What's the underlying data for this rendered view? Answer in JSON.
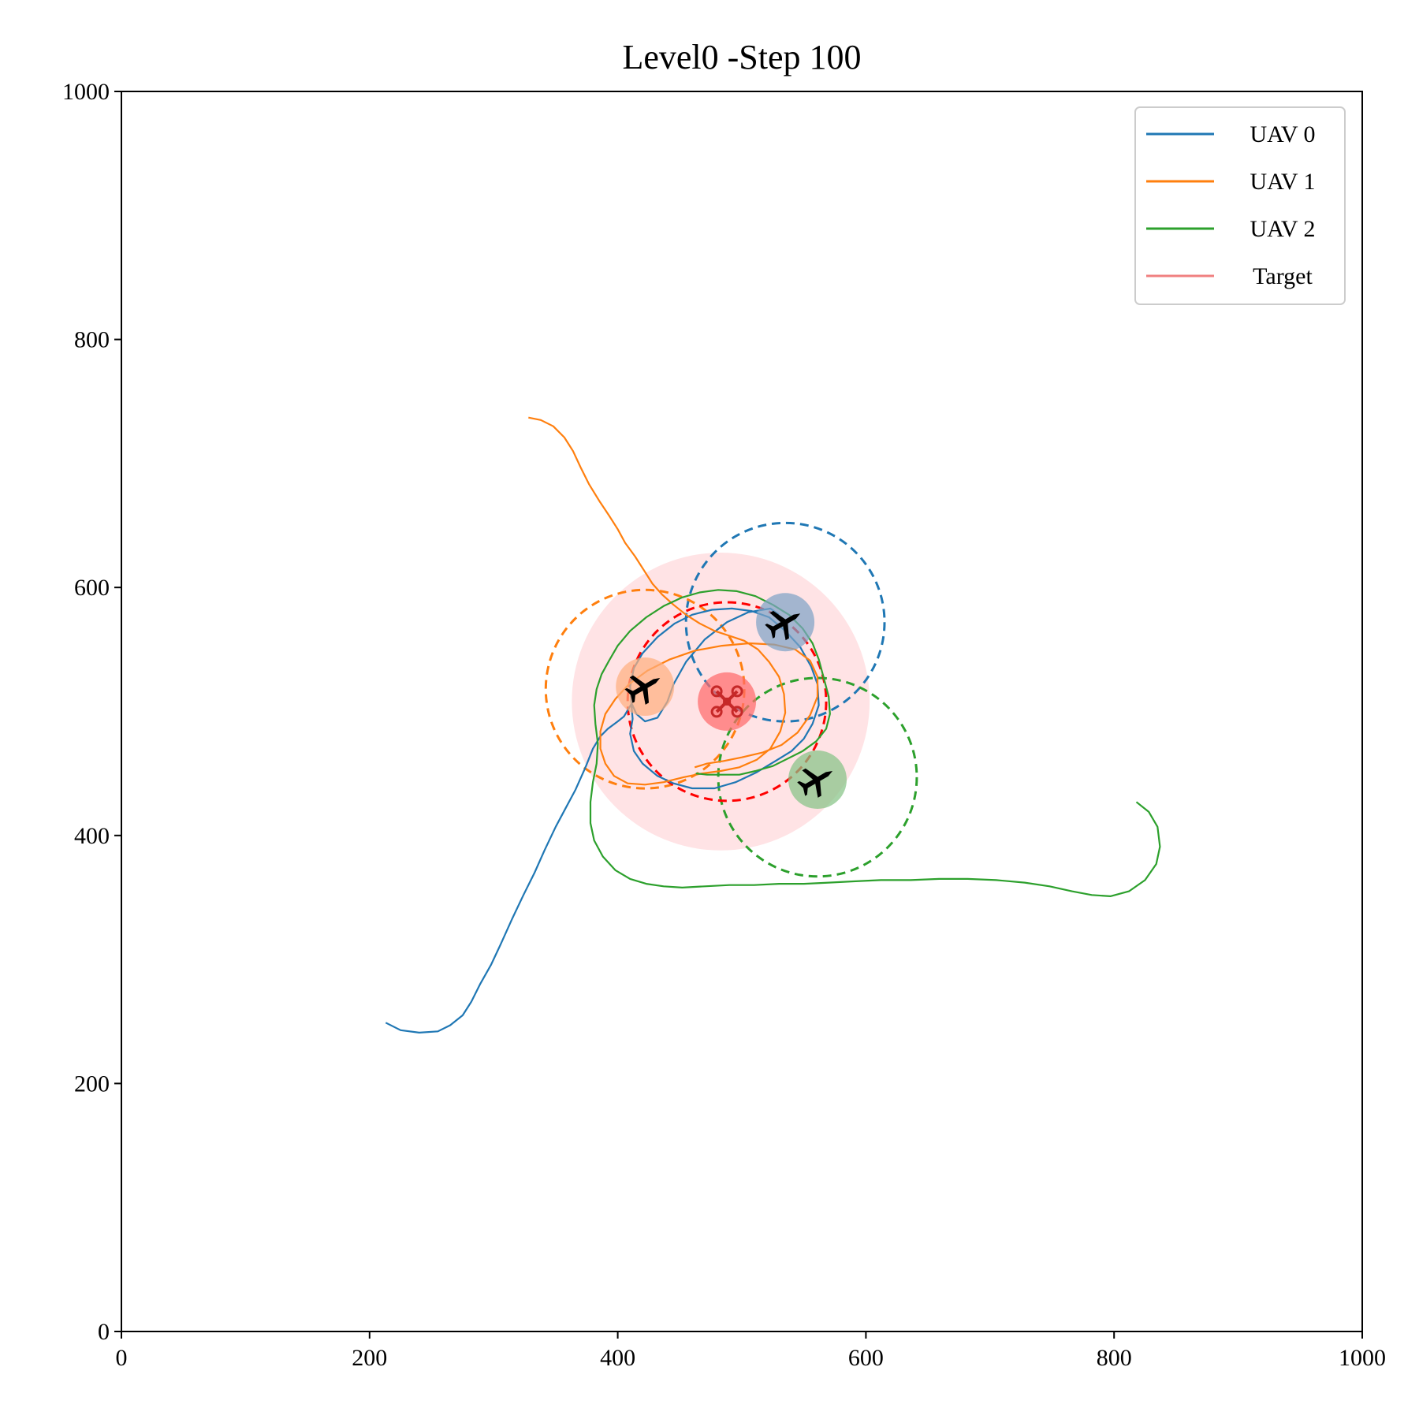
{
  "chart_data": {
    "type": "line",
    "title": "Level0 -Step 100",
    "xlabel": "",
    "ylabel": "",
    "xlim": [
      0,
      1000
    ],
    "ylim": [
      0,
      1000
    ],
    "xticks": [
      0,
      200,
      400,
      600,
      800,
      1000
    ],
    "yticks": [
      0,
      200,
      400,
      600,
      800,
      1000
    ],
    "grid": false,
    "legend_position": "top-right",
    "legend": [
      "UAV 0",
      "UAV 1",
      "UAV 2",
      "Target"
    ],
    "series": [
      {
        "name": "UAV 0",
        "color": "#1f77b4",
        "points": [
          [
            213,
            249
          ],
          [
            225,
            243
          ],
          [
            240,
            241
          ],
          [
            255,
            242
          ],
          [
            265,
            247
          ],
          [
            275,
            255
          ],
          [
            282,
            266
          ],
          [
            289,
            280
          ],
          [
            298,
            296
          ],
          [
            306,
            313
          ],
          [
            315,
            333
          ],
          [
            324,
            352
          ],
          [
            333,
            370
          ],
          [
            341,
            388
          ],
          [
            350,
            407
          ],
          [
            358,
            422
          ],
          [
            366,
            437
          ],
          [
            374,
            455
          ],
          [
            380,
            470
          ],
          [
            386,
            480
          ],
          [
            392,
            486
          ],
          [
            400,
            492
          ],
          [
            405,
            496
          ],
          [
            411,
            506
          ],
          [
            412,
            494
          ],
          [
            410,
            482
          ],
          [
            413,
            468
          ],
          [
            420,
            458
          ],
          [
            432,
            448
          ],
          [
            445,
            442
          ],
          [
            460,
            438
          ],
          [
            478,
            438
          ],
          [
            495,
            443
          ],
          [
            512,
            451
          ],
          [
            527,
            460
          ],
          [
            540,
            468
          ],
          [
            550,
            478
          ],
          [
            557,
            490
          ],
          [
            562,
            505
          ],
          [
            561,
            522
          ],
          [
            556,
            536
          ],
          [
            547,
            552
          ],
          [
            535,
            565
          ],
          [
            522,
            576
          ],
          [
            508,
            581
          ],
          [
            492,
            583
          ],
          [
            476,
            582
          ],
          [
            460,
            578
          ],
          [
            446,
            571
          ],
          [
            432,
            560
          ],
          [
            420,
            547
          ],
          [
            413,
            535
          ],
          [
            410,
            520
          ],
          [
            411,
            507
          ],
          [
            415,
            498
          ],
          [
            422,
            492
          ],
          [
            432,
            495
          ],
          [
            440,
            508
          ],
          [
            445,
            522
          ],
          [
            455,
            540
          ],
          [
            470,
            558
          ],
          [
            488,
            572
          ],
          [
            505,
            580
          ],
          [
            523,
            583
          ],
          [
            530,
            578
          ]
        ]
      },
      {
        "name": "UAV 1",
        "color": "#ff7f0e",
        "points": [
          [
            328,
            737
          ],
          [
            338,
            735
          ],
          [
            348,
            730
          ],
          [
            357,
            721
          ],
          [
            364,
            710
          ],
          [
            370,
            697
          ],
          [
            377,
            683
          ],
          [
            385,
            670
          ],
          [
            393,
            658
          ],
          [
            400,
            647
          ],
          [
            406,
            636
          ],
          [
            414,
            625
          ],
          [
            421,
            614
          ],
          [
            428,
            603
          ],
          [
            436,
            594
          ],
          [
            445,
            586
          ],
          [
            455,
            578
          ],
          [
            466,
            571
          ],
          [
            478,
            565
          ],
          [
            490,
            561
          ],
          [
            502,
            557
          ],
          [
            513,
            550
          ],
          [
            522,
            540
          ],
          [
            530,
            528
          ],
          [
            534,
            514
          ],
          [
            535,
            499
          ],
          [
            531,
            484
          ],
          [
            523,
            470
          ],
          [
            512,
            461
          ],
          [
            498,
            455
          ],
          [
            483,
            452
          ],
          [
            468,
            450
          ],
          [
            453,
            447
          ],
          [
            437,
            443
          ],
          [
            422,
            441
          ],
          [
            408,
            442
          ],
          [
            397,
            448
          ],
          [
            390,
            458
          ],
          [
            386,
            470
          ],
          [
            386,
            484
          ],
          [
            390,
            498
          ],
          [
            398,
            510
          ],
          [
            409,
            522
          ],
          [
            424,
            533
          ],
          [
            442,
            542
          ],
          [
            462,
            549
          ],
          [
            484,
            553
          ],
          [
            506,
            555
          ],
          [
            526,
            554
          ],
          [
            543,
            550
          ],
          [
            555,
            541
          ],
          [
            561,
            528
          ],
          [
            561,
            512
          ],
          [
            555,
            497
          ],
          [
            545,
            483
          ],
          [
            532,
            473
          ],
          [
            517,
            467
          ],
          [
            500,
            463
          ],
          [
            485,
            460
          ],
          [
            472,
            458
          ],
          [
            462,
            455
          ]
        ]
      },
      {
        "name": "UAV 2",
        "color": "#2ca02c",
        "points": [
          [
            818,
            427
          ],
          [
            828,
            419
          ],
          [
            835,
            407
          ],
          [
            837,
            391
          ],
          [
            834,
            377
          ],
          [
            825,
            364
          ],
          [
            812,
            355
          ],
          [
            797,
            351
          ],
          [
            782,
            352
          ],
          [
            766,
            355
          ],
          [
            748,
            359
          ],
          [
            728,
            362
          ],
          [
            705,
            364
          ],
          [
            682,
            365
          ],
          [
            659,
            365
          ],
          [
            636,
            364
          ],
          [
            612,
            364
          ],
          [
            590,
            363
          ],
          [
            570,
            362
          ],
          [
            550,
            361
          ],
          [
            530,
            361
          ],
          [
            510,
            360
          ],
          [
            490,
            360
          ],
          [
            470,
            359
          ],
          [
            452,
            358
          ],
          [
            437,
            359
          ],
          [
            423,
            361
          ],
          [
            410,
            365
          ],
          [
            398,
            372
          ],
          [
            388,
            383
          ],
          [
            381,
            396
          ],
          [
            378,
            410
          ],
          [
            378,
            427
          ],
          [
            380,
            443
          ],
          [
            383,
            458
          ],
          [
            384,
            474
          ],
          [
            382,
            490
          ],
          [
            381,
            505
          ],
          [
            383,
            518
          ],
          [
            387,
            530
          ],
          [
            393,
            541
          ],
          [
            400,
            553
          ],
          [
            410,
            565
          ],
          [
            423,
            576
          ],
          [
            437,
            585
          ],
          [
            452,
            592
          ],
          [
            466,
            596
          ],
          [
            481,
            598
          ],
          [
            496,
            597
          ],
          [
            511,
            593
          ],
          [
            525,
            586
          ],
          [
            538,
            578
          ],
          [
            549,
            567
          ],
          [
            557,
            555
          ],
          [
            562,
            542
          ],
          [
            566,
            527
          ],
          [
            570,
            512
          ],
          [
            571,
            498
          ],
          [
            568,
            486
          ],
          [
            560,
            476
          ],
          [
            549,
            468
          ],
          [
            537,
            462
          ],
          [
            525,
            456
          ],
          [
            511,
            452
          ],
          [
            498,
            449
          ],
          [
            484,
            449
          ],
          [
            472,
            449
          ],
          [
            463,
            450
          ]
        ]
      }
    ],
    "markers": [
      {
        "name": "UAV 0",
        "x": 535,
        "y": 572,
        "color": "#7fa3c6"
      },
      {
        "name": "UAV 1",
        "x": 422,
        "y": 520,
        "color": "#ffb07f"
      },
      {
        "name": "UAV 2",
        "x": 561,
        "y": 445,
        "color": "#86c386"
      },
      {
        "name": "Target",
        "x": 488,
        "y": 508,
        "color": "#ff6b6b"
      }
    ],
    "ranges": [
      {
        "name": "UAV 0",
        "x": 535,
        "y": 572,
        "r": 80,
        "color": "#1f77b4"
      },
      {
        "name": "UAV 1",
        "x": 422,
        "y": 518,
        "r": 80,
        "color": "#ff7f0e"
      },
      {
        "name": "UAV 2",
        "x": 561,
        "y": 447,
        "r": 80,
        "color": "#2ca02c"
      },
      {
        "name": "Target",
        "x": 488,
        "y": 508,
        "r": 80,
        "color": "#ff0000"
      }
    ],
    "target_zone": {
      "x": 483,
      "y": 508,
      "r": 120,
      "color": "#ffe3e5"
    }
  }
}
